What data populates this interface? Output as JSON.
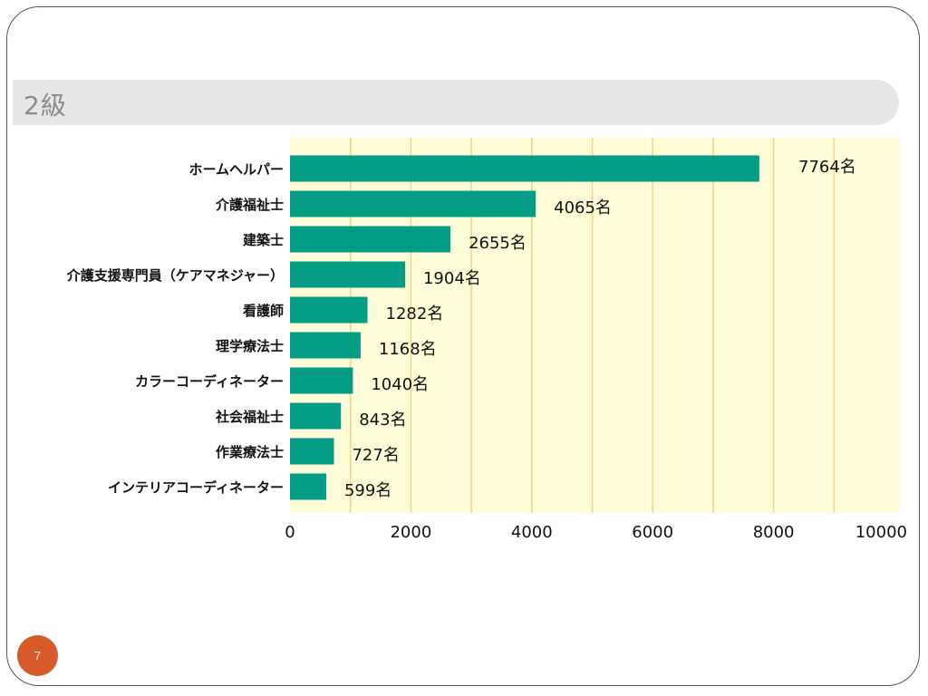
{
  "slide": {
    "title": "2級",
    "page_number": "7"
  },
  "colors": {
    "bar": "#039c84",
    "plot_background": "#fffed9",
    "gridline": "#f2d48a",
    "header_bar": "#e6e6e6",
    "page_badge": "#d65a2a"
  },
  "chart_data": {
    "type": "bar",
    "orientation": "horizontal",
    "title": "",
    "xlabel": "",
    "ylabel": "",
    "value_suffix": "名",
    "xlim": [
      0,
      10000
    ],
    "x_ticks": [
      0,
      2000,
      4000,
      6000,
      8000,
      10000
    ],
    "grid": true,
    "categories": [
      "ホームヘルパー",
      "介護福祉士",
      "建築士",
      "介護支援専門員（ケアマネジャー）",
      "看護師",
      "理学療法士",
      "カラーコーディネーター",
      "社会福祉士",
      "作業療法士",
      "インテリアコーディネーター"
    ],
    "values": [
      7764,
      4065,
      2655,
      1904,
      1282,
      1168,
      1040,
      843,
      727,
      599
    ]
  }
}
